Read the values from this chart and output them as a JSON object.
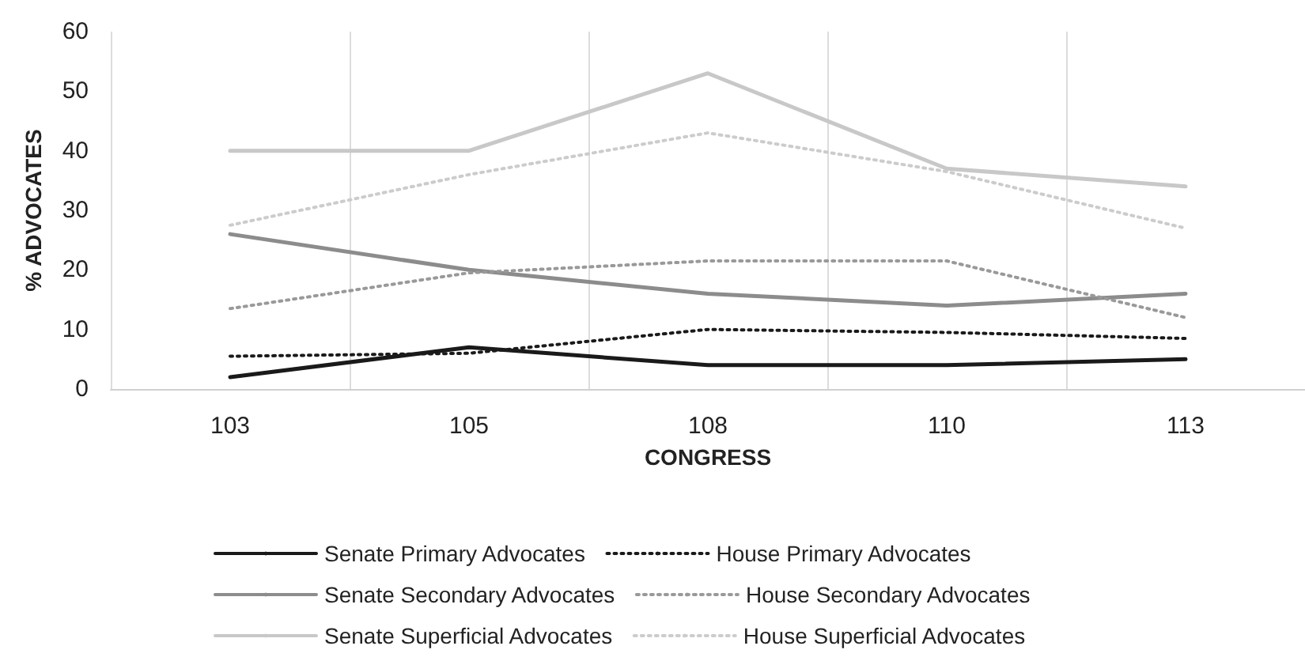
{
  "chart_data": {
    "type": "line",
    "xlabel": "CONGRESS",
    "ylabel": "% ADVOCATES",
    "categories": [
      "103",
      "105",
      "108",
      "110",
      "113"
    ],
    "series": [
      {
        "name": "Senate Primary Advocates",
        "color": "#1a1a1a",
        "line_style": "solid",
        "values": [
          2,
          7,
          4,
          4,
          5
        ]
      },
      {
        "name": "House Primary Advocates",
        "color": "#1a1a1a",
        "line_style": "dotted",
        "values": [
          5.5,
          6,
          10,
          9.5,
          8.5
        ]
      },
      {
        "name": "Senate Secondary Advocates",
        "color": "#8c8c8c",
        "line_style": "solid",
        "values": [
          26,
          20,
          16,
          14,
          16
        ]
      },
      {
        "name": "House Secondary Advocates",
        "color": "#999999",
        "line_style": "dotted",
        "values": [
          13.5,
          19.5,
          21.5,
          21.5,
          12
        ]
      },
      {
        "name": "Senate Superficial Advocates",
        "color": "#c8c8c8",
        "line_style": "solid",
        "values": [
          40,
          40,
          53,
          37,
          34
        ]
      },
      {
        "name": "House Superficial Advocates",
        "color": "#cccccc",
        "line_style": "dotted",
        "values": [
          27.5,
          36,
          43,
          36.5,
          27
        ]
      }
    ],
    "ylim": [
      0,
      60
    ],
    "yticks": [
      0,
      10,
      20,
      30,
      40,
      50,
      60
    ],
    "grid": "x",
    "legend": "bottom",
    "marker": "none"
  }
}
